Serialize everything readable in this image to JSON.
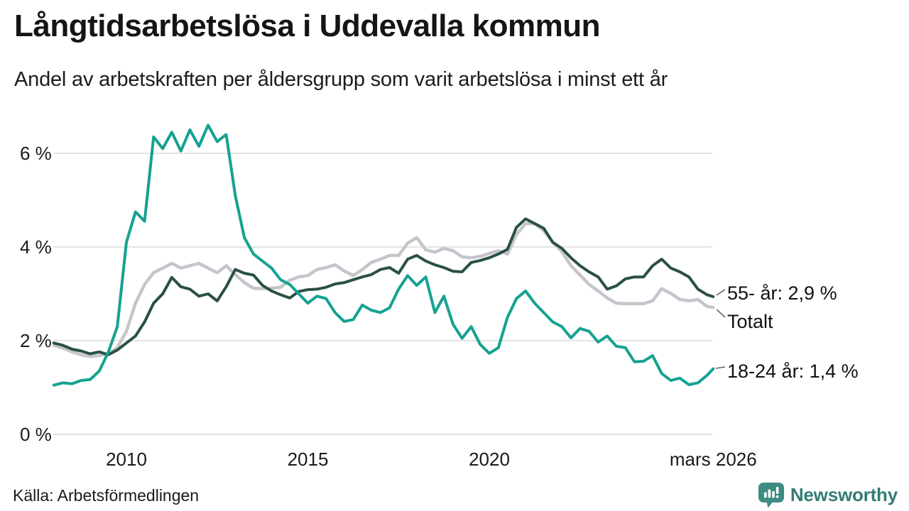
{
  "header": {
    "title": "Långtidsarbetslösa i Uddevalla kommun",
    "subtitle": "Andel av arbetskraften per åldersgrupp som varit arbetslösa i minst ett år"
  },
  "footer": {
    "source": "Källa: Arbetsförmedlingen",
    "brand": "Newsworthy"
  },
  "colors": {
    "teal": "#15A291",
    "dark_green": "#2A5045",
    "gray": "#C6C4CC",
    "grid": "#DBDBDB",
    "text": "#1A1A1A",
    "leader": "#444444",
    "brand_teal": "#337C75",
    "brand_bubble": "#3D8C84"
  },
  "chart_data": {
    "type": "line",
    "title": "Långtidsarbetslösa i Uddevalla kommun",
    "subtitle": "Andel av arbetskraften per åldersgrupp som varit arbetslösa i minst ett år",
    "y_unit": "%",
    "x_range": [
      2008,
      2026.17
    ],
    "y_range": [
      0,
      6.9
    ],
    "grid": true,
    "legend_position": "right-end-labels",
    "x_ticks": [
      {
        "label": "2010",
        "x": 2010
      },
      {
        "label": "2015",
        "x": 2015
      },
      {
        "label": "2020",
        "x": 2020
      },
      {
        "label": "mars 2026",
        "x": 2026.17
      }
    ],
    "y_ticks": [
      {
        "label": "0 %",
        "value": 0
      },
      {
        "label": "2 %",
        "value": 2
      },
      {
        "label": "4 %",
        "value": 4
      },
      {
        "label": "6 %",
        "value": 6
      }
    ],
    "x": [
      2008.0,
      2008.25,
      2008.5,
      2008.75,
      2009.0,
      2009.25,
      2009.5,
      2009.75,
      2010.0,
      2010.25,
      2010.5,
      2010.75,
      2011.0,
      2011.25,
      2011.5,
      2011.75,
      2012.0,
      2012.25,
      2012.5,
      2012.75,
      2013.0,
      2013.25,
      2013.5,
      2013.75,
      2014.0,
      2014.25,
      2014.5,
      2014.75,
      2015.0,
      2015.25,
      2015.5,
      2015.75,
      2016.0,
      2016.25,
      2016.5,
      2016.75,
      2017.0,
      2017.25,
      2017.5,
      2017.75,
      2018.0,
      2018.25,
      2018.5,
      2018.75,
      2019.0,
      2019.25,
      2019.5,
      2019.75,
      2020.0,
      2020.25,
      2020.5,
      2020.75,
      2021.0,
      2021.25,
      2021.5,
      2021.75,
      2022.0,
      2022.25,
      2022.5,
      2022.75,
      2023.0,
      2023.25,
      2023.5,
      2023.75,
      2024.0,
      2024.25,
      2024.5,
      2024.75,
      2025.0,
      2025.25,
      2025.5,
      2025.75,
      2026.0,
      2026.17
    ],
    "series": [
      {
        "id": "total",
        "name": "Totalt",
        "end_label": "Totalt",
        "color_key": "gray",
        "values": [
          1.9,
          1.84,
          1.76,
          1.7,
          1.66,
          1.68,
          1.72,
          1.85,
          2.2,
          2.8,
          3.2,
          3.45,
          3.55,
          3.65,
          3.55,
          3.6,
          3.65,
          3.55,
          3.45,
          3.6,
          3.41,
          3.24,
          3.12,
          3.11,
          3.12,
          3.14,
          3.29,
          3.36,
          3.39,
          3.52,
          3.56,
          3.62,
          3.49,
          3.39,
          3.52,
          3.67,
          3.74,
          3.82,
          3.82,
          4.08,
          4.2,
          3.94,
          3.89,
          3.97,
          3.92,
          3.79,
          3.77,
          3.8,
          3.86,
          3.92,
          3.85,
          4.27,
          4.5,
          4.5,
          4.35,
          4.1,
          3.9,
          3.6,
          3.4,
          3.2,
          3.06,
          2.91,
          2.8,
          2.79,
          2.79,
          2.79,
          2.85,
          3.11,
          3.01,
          2.88,
          2.85,
          2.88,
          2.73,
          2.71
        ]
      },
      {
        "id": "55plus",
        "name": "55- år",
        "end_label": "55- år: 2,9 %",
        "end_value_label": "2,9 %",
        "color_key": "dark_green",
        "values": [
          1.95,
          1.9,
          1.82,
          1.78,
          1.72,
          1.76,
          1.7,
          1.8,
          1.95,
          2.1,
          2.4,
          2.8,
          3.0,
          3.35,
          3.15,
          3.1,
          2.95,
          3.0,
          2.85,
          3.15,
          3.52,
          3.44,
          3.4,
          3.18,
          3.06,
          2.98,
          2.91,
          3.05,
          3.09,
          3.1,
          3.14,
          3.21,
          3.24,
          3.3,
          3.36,
          3.41,
          3.52,
          3.56,
          3.44,
          3.74,
          3.82,
          3.7,
          3.62,
          3.56,
          3.48,
          3.47,
          3.67,
          3.71,
          3.77,
          3.85,
          3.95,
          4.42,
          4.6,
          4.5,
          4.4,
          4.1,
          3.97,
          3.77,
          3.6,
          3.47,
          3.36,
          3.1,
          3.17,
          3.32,
          3.36,
          3.36,
          3.6,
          3.74,
          3.55,
          3.47,
          3.36,
          3.1,
          2.98,
          2.94
        ]
      },
      {
        "id": "18-24",
        "name": "18-24 år",
        "end_label": "18-24 år: 1,4 %",
        "end_value_label": "1,4 %",
        "color_key": "teal",
        "values": [
          1.05,
          1.1,
          1.08,
          1.15,
          1.17,
          1.35,
          1.75,
          2.3,
          4.1,
          4.75,
          4.55,
          6.35,
          6.1,
          6.45,
          6.05,
          6.5,
          6.15,
          6.6,
          6.25,
          6.4,
          5.1,
          4.2,
          3.85,
          3.7,
          3.55,
          3.3,
          3.2,
          3.0,
          2.8,
          2.95,
          2.9,
          2.6,
          2.41,
          2.45,
          2.76,
          2.65,
          2.6,
          2.7,
          3.1,
          3.39,
          3.18,
          3.36,
          2.6,
          2.95,
          2.35,
          2.05,
          2.3,
          1.92,
          1.73,
          1.85,
          2.5,
          2.9,
          3.06,
          2.8,
          2.6,
          2.4,
          2.3,
          2.06,
          2.26,
          2.2,
          1.97,
          2.1,
          1.88,
          1.85,
          1.55,
          1.56,
          1.68,
          1.3,
          1.15,
          1.2,
          1.06,
          1.1,
          1.26,
          1.4
        ]
      }
    ]
  }
}
